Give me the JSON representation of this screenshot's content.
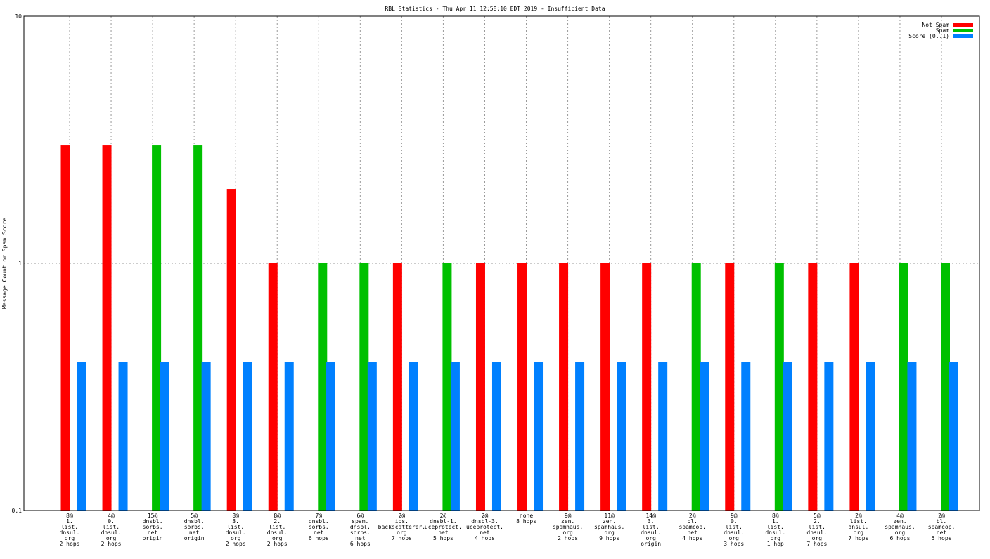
{
  "chart_data": {
    "type": "bar",
    "title": "RBL Statistics - Thu Apr 11 12:58:10 EDT 2019 - Insufficient Data",
    "y_label": "Message Count or Spam Score",
    "log_scale_y": true,
    "ylim": [
      0.1,
      10
    ],
    "yticks": [
      0.1,
      1,
      10
    ],
    "grid": true,
    "legend": "top-right",
    "categories": [
      [
        "8@",
        "1.",
        "list.",
        "dnsul.",
        "org",
        "2 hops"
      ],
      [
        "4@",
        "0.",
        "list.",
        "dnsul.",
        "org",
        "2 hops"
      ],
      [
        "15@",
        "dnsbl.",
        "sorbs.",
        "net",
        "origin"
      ],
      [
        "5@",
        "dnsbl.",
        "sorbs.",
        "net",
        "origin"
      ],
      [
        "8@",
        "3.",
        "list.",
        "dnsul.",
        "org",
        "2 hops"
      ],
      [
        "8@",
        "2.",
        "list.",
        "dnsul.",
        "org",
        "2 hops"
      ],
      [
        "7@",
        "dnsbl.",
        "sorbs.",
        "net",
        "6 hops"
      ],
      [
        "6@",
        "spam.",
        "dnsbl.",
        "sorbs.",
        "net",
        "6 hops"
      ],
      [
        "2@",
        "ips.",
        "backscatterer.",
        "org",
        "7 hops"
      ],
      [
        "2@",
        "dnsbl-1.",
        "uceprotect.",
        "net",
        "5 hops"
      ],
      [
        "2@",
        "dnsbl-3.",
        "uceprotect.",
        "net",
        "4 hops"
      ],
      [
        "none",
        "8 hops"
      ],
      [
        "9@",
        "zen.",
        "spamhaus.",
        "org",
        "2 hops"
      ],
      [
        "11@",
        "zen.",
        "spamhaus.",
        "org",
        "9 hops"
      ],
      [
        "14@",
        "3.",
        "list.",
        "dnsul.",
        "org",
        "origin"
      ],
      [
        "2@",
        "bl.",
        "spamcop.",
        "net",
        "4 hops"
      ],
      [
        "9@",
        "0.",
        "list.",
        "dnsul.",
        "org",
        "3 hops"
      ],
      [
        "8@",
        "1.",
        "list.",
        "dnsul.",
        "org",
        "1 hop"
      ],
      [
        "5@",
        "2.",
        "list.",
        "dnsul.",
        "org",
        "7 hops"
      ],
      [
        "2@",
        "list.",
        "dnsul.",
        "org",
        "7 hops"
      ],
      [
        "4@",
        "zen.",
        "spamhaus.",
        "org",
        "6 hops"
      ],
      [
        "2@",
        "bl.",
        "spamcop.",
        "net",
        "5 hops"
      ]
    ],
    "series": [
      {
        "name": "Not Spam",
        "color": "#ff0000",
        "values": [
          3,
          3,
          null,
          null,
          2,
          1,
          null,
          null,
          1,
          null,
          1,
          1,
          1,
          1,
          1,
          null,
          1,
          null,
          1,
          1,
          null,
          null
        ]
      },
      {
        "name": "Spam",
        "color": "#00c000",
        "values": [
          null,
          null,
          3,
          3,
          null,
          null,
          1,
          1,
          null,
          1,
          null,
          null,
          null,
          null,
          null,
          1,
          null,
          1,
          null,
          null,
          1,
          1
        ]
      },
      {
        "name": "Score (0..1)",
        "color": "#0080ff",
        "values": [
          0.4,
          0.4,
          0.4,
          0.4,
          0.4,
          0.4,
          0.4,
          0.4,
          0.4,
          0.4,
          0.4,
          0.4,
          0.4,
          0.4,
          0.4,
          0.4,
          0.4,
          0.4,
          0.4,
          0.4,
          0.4,
          0.4
        ]
      }
    ]
  }
}
